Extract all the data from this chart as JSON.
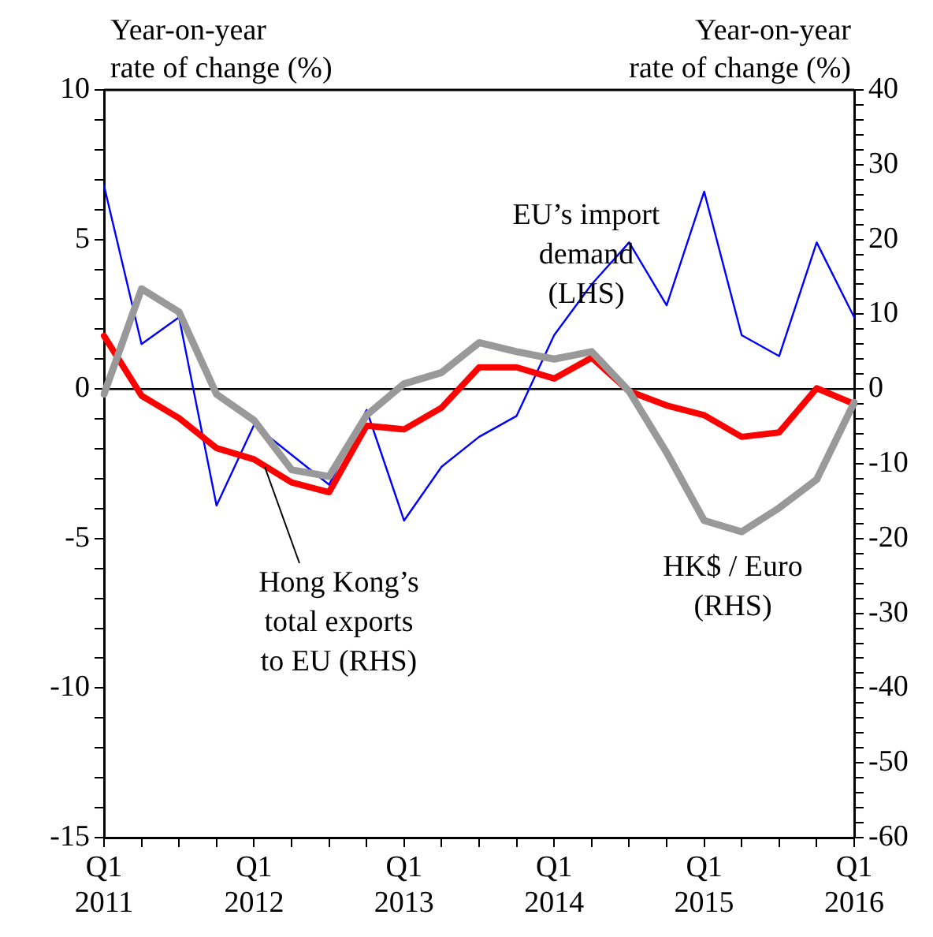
{
  "chart_data": {
    "type": "line",
    "ylabel": "Year-on-year\nrate of change (%)",
    "y2label": "Year-on-year\nrate of change (%)",
    "categories": [
      "Q1\n2011",
      null,
      null,
      null,
      "Q1\n2012",
      null,
      null,
      null,
      "Q1\n2013",
      null,
      null,
      null,
      "Q1\n2014",
      null,
      null,
      null,
      "Q1\n2015",
      null,
      null,
      null,
      "Q1\n2016"
    ],
    "series": [
      {
        "name": "EU’s import\ndemand\n(LHS)",
        "color": "#0000ff",
        "values": [
          6.8,
          1.5,
          2.4,
          -3.9,
          -1.2,
          null,
          -3.2,
          -0.7,
          -4.4,
          -2.6,
          -1.6,
          -0.9,
          1.8,
          3.5,
          4.9,
          2.8,
          6.6,
          1.8,
          1.1,
          4.9,
          2.4
        ]
      },
      {
        "name": "Hong Kong’s\ntotal exports\nto EU (RHS)",
        "color": "#ff0000",
        "axis": "y2",
        "values": [
          7.1,
          -0.9,
          -3.9,
          -7.9,
          -9.4,
          -12.5,
          -13.8,
          -4.9,
          -5.4,
          -2.5,
          2.9,
          2.9,
          1.4,
          4.2,
          -0.3,
          -2.2,
          -3.5,
          -6.4,
          -5.8,
          0.1,
          -2.0
        ]
      },
      {
        "name": "HK$ / Euro\n(RHS)",
        "color": "#999999",
        "axis": "y2",
        "values": [
          -0.7,
          13.4,
          10.3,
          -0.7,
          -4.2,
          -10.8,
          -11.7,
          -3.5,
          0.7,
          2.2,
          6.2,
          5.0,
          4.0,
          5.0,
          -0.3,
          -8.5,
          -17.6,
          -19.1,
          -15.9,
          -12.1,
          -1.8
        ]
      }
    ],
    "ylim": [
      -15,
      10
    ],
    "yticks": [
      -15,
      {
        "value": -14,
        "label": null
      },
      {
        "value": -13,
        "label": null
      },
      {
        "value": -12,
        "label": null
      },
      {
        "value": -11,
        "label": null
      },
      -10,
      {
        "value": -9,
        "label": null
      },
      {
        "value": -8,
        "label": null
      },
      {
        "value": -7,
        "label": null
      },
      {
        "value": -6,
        "label": null
      },
      -5,
      {
        "value": -4,
        "label": null
      },
      {
        "value": -3,
        "label": null
      },
      {
        "value": -2,
        "label": null
      },
      {
        "value": -1,
        "label": null
      },
      0,
      {
        "value": 1,
        "label": null
      },
      {
        "value": 2,
        "label": null
      },
      {
        "value": 3,
        "label": null
      },
      {
        "value": 4,
        "label": null
      },
      5,
      {
        "value": 6,
        "label": null
      },
      {
        "value": 7,
        "label": null
      },
      {
        "value": 8,
        "label": null
      },
      {
        "value": 9,
        "label": null
      },
      10
    ],
    "y2lim": [
      -60,
      40
    ],
    "y2ticks": [
      -60,
      {
        "value": -58,
        "label": null
      },
      {
        "value": -56,
        "label": null
      },
      {
        "value": -54,
        "label": null
      },
      {
        "value": -52,
        "label": null
      },
      -50,
      {
        "value": -48,
        "label": null
      },
      {
        "value": -46,
        "label": null
      },
      {
        "value": -44,
        "label": null
      },
      {
        "value": -42,
        "label": null
      },
      -40,
      {
        "value": -38,
        "label": null
      },
      {
        "value": -36,
        "label": null
      },
      {
        "value": -34,
        "label": null
      },
      {
        "value": -32,
        "label": null
      },
      -30,
      {
        "value": -28,
        "label": null
      },
      {
        "value": -26,
        "label": null
      },
      {
        "value": -24,
        "label": null
      },
      {
        "value": -22,
        "label": null
      },
      -20,
      {
        "value": -18,
        "label": null
      },
      {
        "value": -16,
        "label": null
      },
      {
        "value": -14,
        "label": null
      },
      {
        "value": -12,
        "label": null
      },
      -10,
      {
        "value": -8,
        "label": null
      },
      {
        "value": -6,
        "label": null
      },
      {
        "value": -4,
        "label": null
      },
      {
        "value": -2,
        "label": null
      },
      0,
      {
        "value": 2,
        "label": null
      },
      {
        "value": 4,
        "label": null
      },
      {
        "value": 6,
        "label": null
      },
      {
        "value": 8,
        "label": null
      },
      10,
      {
        "value": 12,
        "label": null
      },
      {
        "value": 14,
        "label": null
      },
      {
        "value": 16,
        "label": null
      },
      {
        "value": 18,
        "label": null
      },
      20,
      {
        "value": 22,
        "label": null
      },
      {
        "value": 24,
        "label": null
      },
      {
        "value": 26,
        "label": null
      },
      {
        "value": 28,
        "label": null
      },
      30,
      {
        "value": 32,
        "label": null
      },
      {
        "value": 34,
        "label": null
      },
      {
        "value": 36,
        "label": null
      },
      {
        "value": 38,
        "label": null
      },
      40
    ],
    "ref_lines": [
      {
        "axis": "y",
        "value": 0,
        "color": "#000000"
      }
    ],
    "grid": false,
    "legend": false,
    "marker": "none",
    "line_style": "solid"
  }
}
